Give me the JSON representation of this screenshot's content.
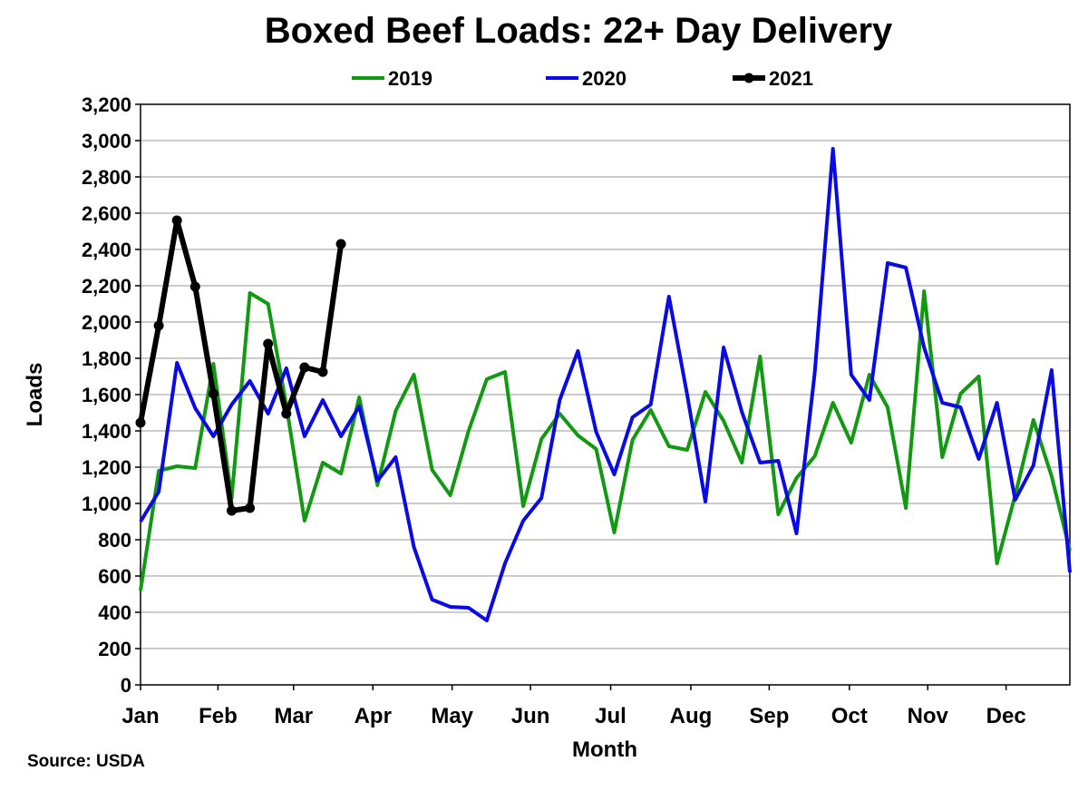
{
  "chart_data": {
    "type": "line",
    "title": "Boxed Beef Loads: 22+ Day Delivery",
    "xlabel": "Month",
    "ylabel": "Loads",
    "source": "Source: USDA",
    "ylim": [
      0,
      3200
    ],
    "yticks": [
      "0",
      "200",
      "400",
      "600",
      "800",
      "1,000",
      "1,200",
      "1,400",
      "1,600",
      "1,800",
      "2,000",
      "2,200",
      "2,400",
      "2,600",
      "2,800",
      "3,000",
      "3,200"
    ],
    "xlim_weeks": [
      0,
      51
    ],
    "months": [
      "Jan",
      "Feb",
      "Mar",
      "Apr",
      "May",
      "Jun",
      "Jul",
      "Aug",
      "Sep",
      "Oct",
      "Nov",
      "Dec"
    ],
    "month_week_positions": [
      0,
      4.25,
      8.4,
      12.75,
      17.1,
      21.4,
      25.8,
      30.2,
      34.5,
      38.9,
      43.2,
      47.5
    ],
    "grid": true,
    "legend_position": "top",
    "series": [
      {
        "name": "2019",
        "color": "#119911",
        "markers": false,
        "values": [
          520,
          1180,
          1205,
          1195,
          1770,
          1030,
          2160,
          2100,
          1540,
          905,
          1225,
          1165,
          1585,
          1100,
          1510,
          1710,
          1185,
          1045,
          1400,
          1685,
          1725,
          985,
          1355,
          1495,
          1375,
          1300,
          840,
          1350,
          1515,
          1315,
          1295,
          1615,
          1455,
          1225,
          1810,
          940,
          1140,
          1260,
          1555,
          1335,
          1710,
          1530,
          975,
          2170,
          1255,
          1605,
          1700,
          670,
          1045,
          1460,
          1150,
          740
        ]
      },
      {
        "name": "2020",
        "color": "#0a0ae6",
        "markers": false,
        "values": [
          900,
          1065,
          1775,
          1525,
          1370,
          1545,
          1675,
          1495,
          1745,
          1370,
          1570,
          1370,
          1535,
          1125,
          1255,
          760,
          470,
          430,
          425,
          355,
          670,
          905,
          1030,
          1570,
          1840,
          1395,
          1160,
          1475,
          1545,
          2140,
          1600,
          1010,
          1860,
          1505,
          1225,
          1235,
          835,
          1720,
          2955,
          1710,
          1570,
          2325,
          2300,
          1860,
          1555,
          1530,
          1245,
          1555,
          1020,
          1210,
          1735,
          620
        ]
      },
      {
        "name": "2021",
        "color": "#000000",
        "markers": true,
        "values": [
          1445,
          1980,
          2560,
          2195,
          1605,
          960,
          975,
          1880,
          1495,
          1750,
          1725,
          2430
        ]
      }
    ]
  }
}
